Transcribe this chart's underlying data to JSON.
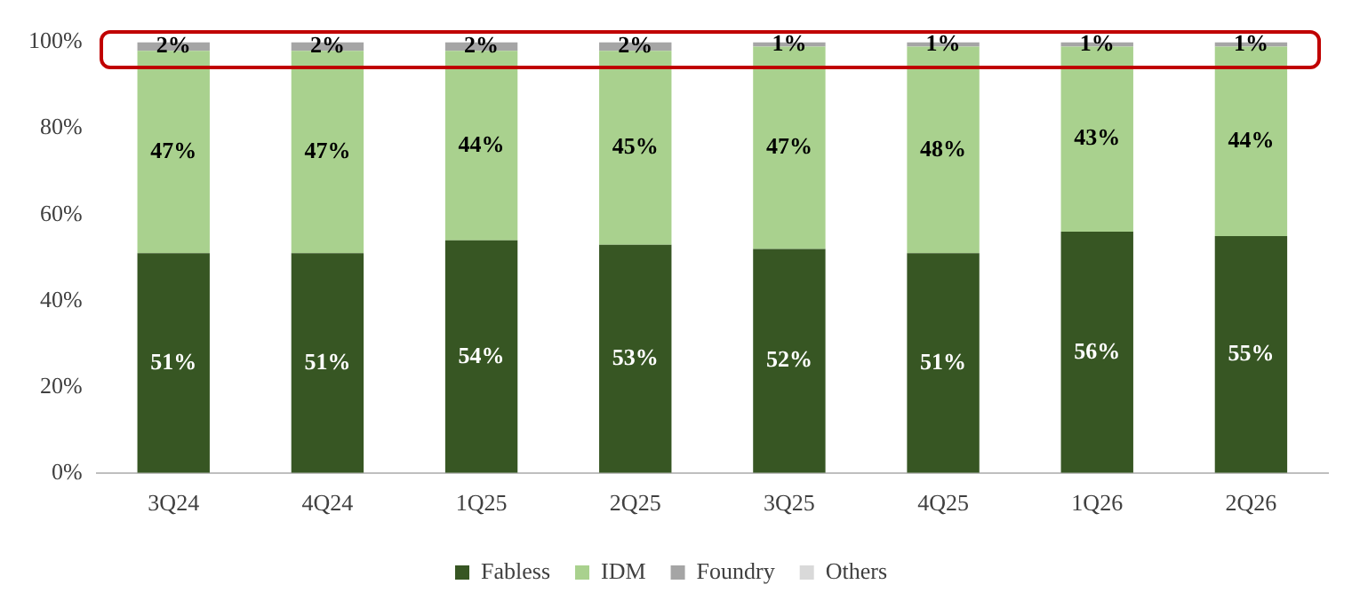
{
  "chart_data": {
    "type": "bar",
    "stacked": true,
    "categories": [
      "3Q24",
      "4Q24",
      "1Q25",
      "2Q25",
      "3Q25",
      "4Q25",
      "1Q26",
      "2Q26"
    ],
    "series": [
      {
        "name": "Fabless",
        "color": "#375623",
        "values": [
          51,
          51,
          54,
          53,
          52,
          51,
          56,
          55
        ],
        "value_labels": [
          "51%",
          "51%",
          "54%",
          "53%",
          "52%",
          "51%",
          "56%",
          "55%"
        ]
      },
      {
        "name": "IDM",
        "color": "#a9d18e",
        "values": [
          47,
          47,
          44,
          45,
          47,
          48,
          43,
          44
        ],
        "value_labels": [
          "47%",
          "47%",
          "44%",
          "45%",
          "47%",
          "48%",
          "43%",
          "44%"
        ]
      },
      {
        "name": "Foundry",
        "color": "#a5a5a5",
        "values": [
          2,
          2,
          2,
          2,
          1,
          1,
          1,
          1
        ],
        "value_labels": [
          "2%",
          "2%",
          "2%",
          "2%",
          "1%",
          "1%",
          "1%",
          "1%"
        ]
      },
      {
        "name": "Others",
        "color": "#d9d9d9",
        "values": [
          0,
          0,
          0,
          0,
          0,
          0,
          0,
          0
        ]
      }
    ],
    "ylim": [
      0,
      100
    ],
    "yticks": [
      {
        "value": 0,
        "label": "0%"
      },
      {
        "value": 20,
        "label": "20%"
      },
      {
        "value": 40,
        "label": "40%"
      },
      {
        "value": 60,
        "label": "60%"
      },
      {
        "value": 80,
        "label": "80%"
      },
      {
        "value": 100,
        "label": "100%"
      }
    ],
    "grid": false,
    "legend": "bottom"
  }
}
